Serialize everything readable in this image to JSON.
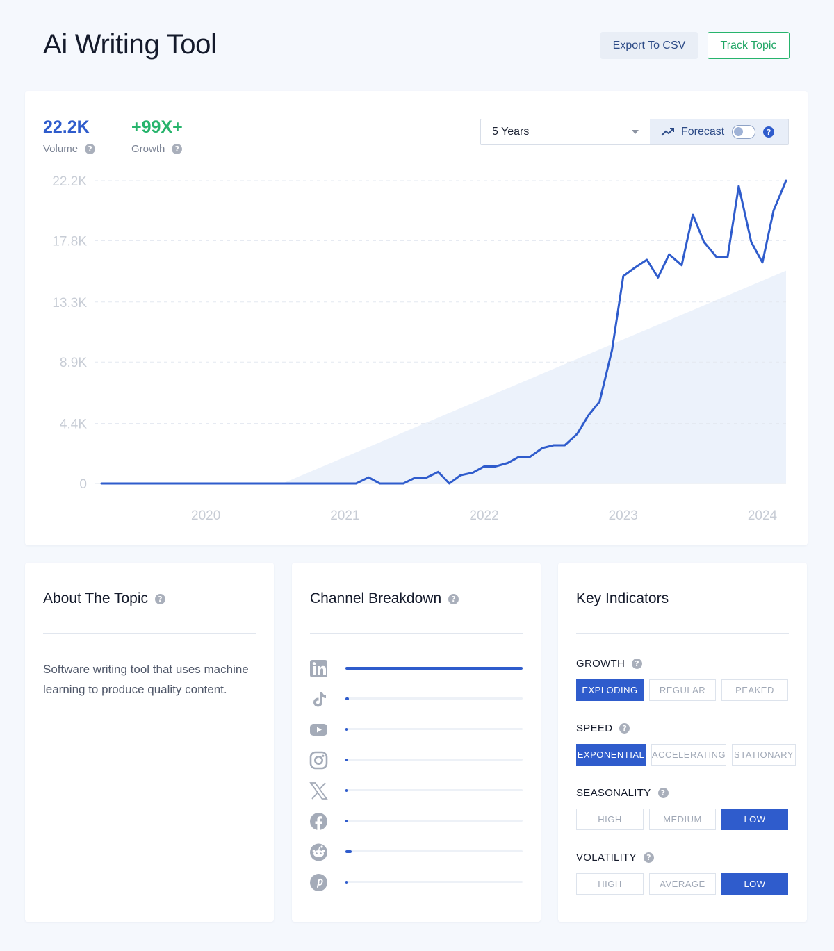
{
  "header": {
    "title": "Ai Writing Tool",
    "export_label": "Export To CSV",
    "track_label": "Track Topic"
  },
  "stats": {
    "volume": {
      "value": "22.2K",
      "label": "Volume",
      "color": "#2f5ccc"
    },
    "growth": {
      "value": "+99X+",
      "label": "Growth",
      "color": "#27b46c"
    }
  },
  "controls": {
    "range_selected": "5 Years",
    "forecast_label": "Forecast",
    "forecast_on": false
  },
  "chart_data": {
    "type": "line",
    "y_tick_labels": [
      "0",
      "4.4K",
      "8.9K",
      "13.3K",
      "17.8K",
      "22.2K"
    ],
    "y_ticks": [
      0,
      4400,
      8900,
      13300,
      17800,
      22200
    ],
    "ylim": [
      0,
      22200
    ],
    "x_tick_labels": [
      "2020",
      "2021",
      "2022",
      "2023",
      "2024"
    ],
    "x_ticks": [
      2020.0,
      2021.0,
      2022.0,
      2023.0,
      2024.0
    ],
    "xlim": [
      2019.25,
      2024.17
    ],
    "grid": true,
    "trend_area": {
      "x": [
        2020.55,
        2024.17
      ],
      "y": [
        0,
        15600
      ]
    },
    "series": [
      {
        "color": "#2f5ccc",
        "points": [
          [
            2019.25,
            0
          ],
          [
            2020.5,
            0
          ],
          [
            2021.08,
            0
          ],
          [
            2021.17,
            450
          ],
          [
            2021.25,
            0
          ],
          [
            2021.42,
            0
          ],
          [
            2021.5,
            400
          ],
          [
            2021.58,
            400
          ],
          [
            2021.67,
            850
          ],
          [
            2021.75,
            0
          ],
          [
            2021.83,
            600
          ],
          [
            2021.92,
            800
          ],
          [
            2022.0,
            1250
          ],
          [
            2022.08,
            1250
          ],
          [
            2022.17,
            1500
          ],
          [
            2022.25,
            1950
          ],
          [
            2022.33,
            1950
          ],
          [
            2022.42,
            2600
          ],
          [
            2022.5,
            2800
          ],
          [
            2022.58,
            2800
          ],
          [
            2022.67,
            3650
          ],
          [
            2022.75,
            5000
          ],
          [
            2022.83,
            6000
          ],
          [
            2022.92,
            9800
          ],
          [
            2023.0,
            15200
          ],
          [
            2023.08,
            15800
          ],
          [
            2023.17,
            16400
          ],
          [
            2023.25,
            15100
          ],
          [
            2023.33,
            16800
          ],
          [
            2023.42,
            16000
          ],
          [
            2023.5,
            19700
          ],
          [
            2023.58,
            17700
          ],
          [
            2023.67,
            16600
          ],
          [
            2023.75,
            16600
          ],
          [
            2023.83,
            21800
          ],
          [
            2023.92,
            17700
          ],
          [
            2024.0,
            16200
          ],
          [
            2024.08,
            20000
          ],
          [
            2024.17,
            22200
          ]
        ]
      }
    ]
  },
  "about": {
    "title": "About The Topic",
    "text": "Software writing tool that uses machine learning to produce quality content."
  },
  "channels": {
    "title": "Channel Breakdown",
    "items": [
      {
        "icon": "linkedin-icon",
        "level": 1.0
      },
      {
        "icon": "tiktok-icon",
        "level": 0.02
      },
      {
        "icon": "youtube-icon",
        "level": 0.012
      },
      {
        "icon": "instagram-icon",
        "level": 0.01
      },
      {
        "icon": "x-icon",
        "level": 0.008
      },
      {
        "icon": "facebook-icon",
        "level": 0.008
      },
      {
        "icon": "reddit-icon",
        "level": 0.035
      },
      {
        "icon": "pinterest-icon",
        "level": 0.008
      }
    ]
  },
  "indicators": {
    "title": "Key Indicators",
    "groups": [
      {
        "label": "GROWTH",
        "options": [
          "EXPLODING",
          "REGULAR",
          "PEAKED"
        ],
        "active": 0
      },
      {
        "label": "SPEED",
        "options": [
          "EXPONENTIAL",
          "ACCELERATING",
          "STATIONARY"
        ],
        "active": 0
      },
      {
        "label": "SEASONALITY",
        "options": [
          "HIGH",
          "MEDIUM",
          "LOW"
        ],
        "active": 2
      },
      {
        "label": "VOLATILITY",
        "options": [
          "HIGH",
          "AVERAGE",
          "LOW"
        ],
        "active": 2
      }
    ]
  },
  "colors": {
    "accent": "#2f5ccc",
    "positive": "#27b46c"
  }
}
